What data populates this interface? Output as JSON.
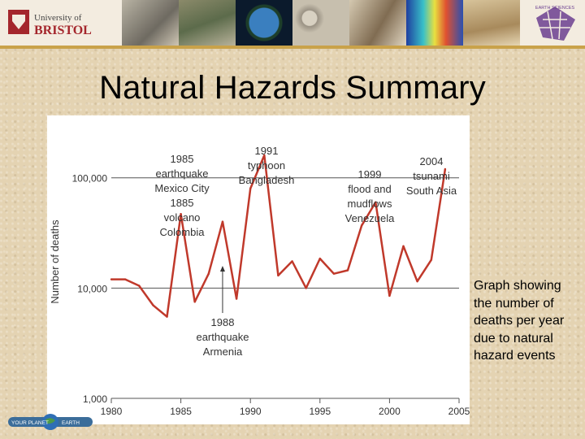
{
  "header": {
    "logo_left_line1": "University of",
    "logo_left_line2": "BRISTOL",
    "logo_right_text": "EARTH SCIENCES"
  },
  "slide": {
    "title": "Natural Hazards Summary",
    "caption": "Graph showing the number of deaths per year due to natural hazard events"
  },
  "footer": {
    "logo_text_left": "YOUR PLANET",
    "logo_text_right": "EARTH"
  },
  "colors": {
    "line": "#c0392b",
    "banner_rule": "#c9a24a"
  },
  "chart_data": {
    "type": "line",
    "ylabel": "Number of deaths",
    "yscale": "log",
    "ylim": [
      1000,
      300000
    ],
    "xlim": [
      1980,
      2005
    ],
    "xticks": [
      "1980",
      "1985",
      "1990",
      "1995",
      "2000",
      "2005"
    ],
    "yticks": [
      "1,000",
      "10,000",
      "100,000"
    ],
    "gridlines": [
      10000,
      100000
    ],
    "series": [
      {
        "x": [
          1980,
          1981,
          1982,
          1983,
          1984,
          1985,
          1986,
          1987,
          1988,
          1989,
          1990,
          1991,
          1992,
          1993,
          1994,
          1995,
          1996,
          1997,
          1998,
          1999,
          2000,
          2001,
          2002,
          2003,
          2004
        ],
        "values": [
          12000,
          12000,
          10500,
          7000,
          5500,
          47000,
          7500,
          13500,
          40000,
          8000,
          80000,
          160000,
          13000,
          17500,
          10000,
          18500,
          13500,
          14500,
          37000,
          60000,
          8500,
          24000,
          11500,
          18000,
          120000
        ]
      }
    ],
    "annotations": [
      {
        "year": 1985,
        "text": [
          "1985",
          "earthquake",
          "Mexico City",
          "1885",
          "volcano",
          "Colombia"
        ]
      },
      {
        "year": 1991,
        "text": [
          "1991",
          "typhoon",
          "Bangladesh"
        ]
      },
      {
        "year": 1999,
        "text": [
          "1999",
          "flood and",
          "mudflows",
          "Venezuela"
        ]
      },
      {
        "year": 2004,
        "text": [
          "2004",
          "tsunami",
          "South Asia"
        ]
      },
      {
        "year": 1988,
        "text": [
          "1988",
          "earthquake",
          "Armenia"
        ]
      }
    ]
  }
}
